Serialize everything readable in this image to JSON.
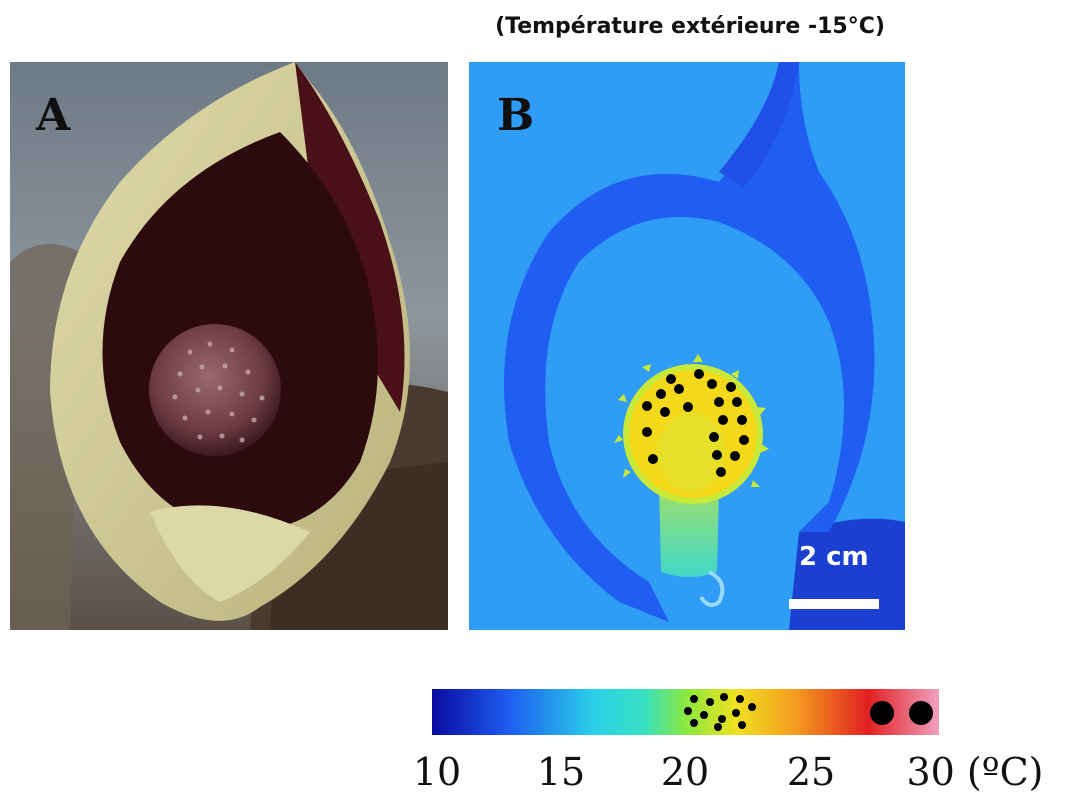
{
  "caption": "(Température extérieure -15°C)",
  "panel_a": {
    "letter": "A"
  },
  "panel_b": {
    "letter": "B",
    "scale_label": "2 cm"
  },
  "colorbar": {
    "ticks": [
      "10",
      "15",
      "20",
      "25",
      "30 (ºC)"
    ],
    "colors": [
      "#0a0aa0",
      "#1e5cf0",
      "#2ad0e8",
      "#38e0c0",
      "#8ae840",
      "#f0e020",
      "#f59a20",
      "#e02020",
      "#f0a0c0"
    ]
  },
  "colors": {
    "thermal_background": "#2f9cf5",
    "spathe_cold": "#1f5ef0",
    "spadix_warm": "#f4d81a",
    "spadix_edge": "#c8e83a",
    "photo_spathe_inner": "#3a0c12",
    "photo_spathe_outer": "#d4d29a"
  }
}
